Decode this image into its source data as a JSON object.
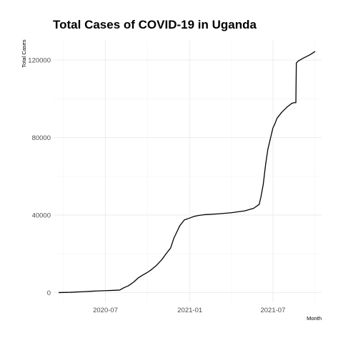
{
  "chart_data": {
    "type": "line",
    "title": "Total Cases of COVID-19 in Uganda",
    "xlabel": "Month",
    "ylabel": "Total Cases",
    "x_ticks": [
      {
        "date": "2020-07-01",
        "label": "2020-07"
      },
      {
        "date": "2021-01-01",
        "label": "2021-01"
      },
      {
        "date": "2021-07-01",
        "label": "2021-07"
      }
    ],
    "y_ticks": [
      {
        "value": 0,
        "label": "0"
      },
      {
        "value": 40000,
        "label": "40000"
      },
      {
        "value": 80000,
        "label": "80000"
      },
      {
        "value": 120000,
        "label": "120000"
      }
    ],
    "xlim": [
      "2020-03-10",
      "2021-10-15"
    ],
    "ylim": [
      -5000,
      130000
    ],
    "grid": true,
    "series": [
      {
        "color": "#000000",
        "x": [
          "2020-03-21",
          "2020-04-15",
          "2020-05-15",
          "2020-06-01",
          "2020-06-15",
          "2020-07-01",
          "2020-07-15",
          "2020-08-01",
          "2020-08-10",
          "2020-08-20",
          "2020-09-01",
          "2020-09-10",
          "2020-09-20",
          "2020-10-01",
          "2020-10-10",
          "2020-10-20",
          "2020-11-01",
          "2020-11-10",
          "2020-11-20",
          "2020-11-27",
          "2020-12-01",
          "2020-12-10",
          "2020-12-20",
          "2021-01-01",
          "2021-01-10",
          "2021-01-20",
          "2021-02-01",
          "2021-03-01",
          "2021-04-01",
          "2021-05-01",
          "2021-05-20",
          "2021-06-01",
          "2021-06-05",
          "2021-06-10",
          "2021-06-15",
          "2021-06-20",
          "2021-06-25",
          "2021-07-01",
          "2021-07-05",
          "2021-07-10",
          "2021-07-20",
          "2021-08-01",
          "2021-08-10",
          "2021-08-15",
          "2021-08-20",
          "2021-08-21",
          "2021-08-25",
          "2021-09-05",
          "2021-09-20",
          "2021-10-01"
        ],
        "y": [
          0,
          150,
          500,
          700,
          850,
          1000,
          1100,
          1300,
          2500,
          3500,
          5500,
          7500,
          9000,
          10500,
          12000,
          14000,
          17000,
          20000,
          23000,
          28000,
          30000,
          34500,
          37500,
          38500,
          39300,
          39800,
          40200,
          40600,
          41200,
          42200,
          43500,
          45500,
          49500,
          56000,
          66000,
          74000,
          79000,
          85000,
          87000,
          90000,
          93000,
          95800,
          97500,
          98000,
          98000,
          118500,
          119500,
          121000,
          122800,
          124500
        ]
      }
    ]
  }
}
